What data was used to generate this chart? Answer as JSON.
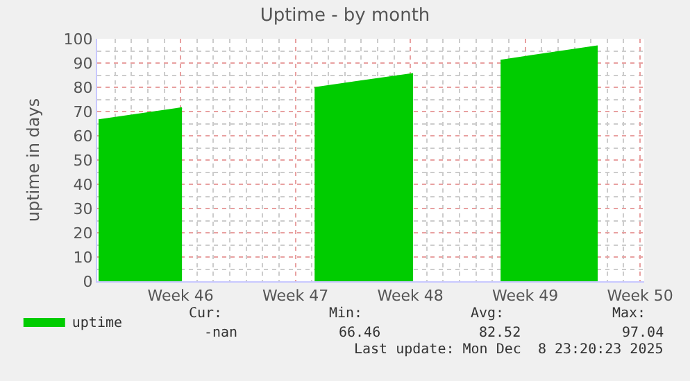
{
  "chart_data": {
    "type": "area",
    "title": "Uptime - by month",
    "ylabel": "uptime in days",
    "x": [
      "2025-11-05T00:00",
      "2025-11-10T02:00",
      "2025-11-14T00:00",
      "2025-11-18T04:00",
      "2025-11-24T04:00",
      "2025-11-27T00:00",
      "2025-11-29T12:00",
      "2025-12-05T10:00"
    ],
    "series": [
      {
        "name": "uptime",
        "color": "#00cc00",
        "values": [
          66.5,
          71.5,
          null,
          79.8,
          85.6,
          null,
          91.1,
          97.0
        ]
      }
    ],
    "xlim": [
      "2025-11-04T22:00",
      "2025-12-08T06:00"
    ],
    "xticks": [
      {
        "value": "2025-11-10",
        "label": "Week 46"
      },
      {
        "value": "2025-11-17",
        "label": "Week 47"
      },
      {
        "value": "2025-11-24",
        "label": "Week 48"
      },
      {
        "value": "2025-12-01",
        "label": "Week 49"
      },
      {
        "value": "2025-12-08",
        "label": "Week 50"
      }
    ],
    "ylim": [
      0,
      100
    ],
    "yticks": [
      0,
      10,
      20,
      30,
      40,
      50,
      60,
      70,
      80,
      90,
      100
    ],
    "grid": true,
    "legend": "bottom left",
    "annotations": [
      "Cur:",
      "Min:",
      "Avg:",
      "Max:",
      "-nan",
      "66.46",
      "82.52",
      "97.04",
      "Last update: Mon Dec  8 23:20:23 2025"
    ]
  }
}
